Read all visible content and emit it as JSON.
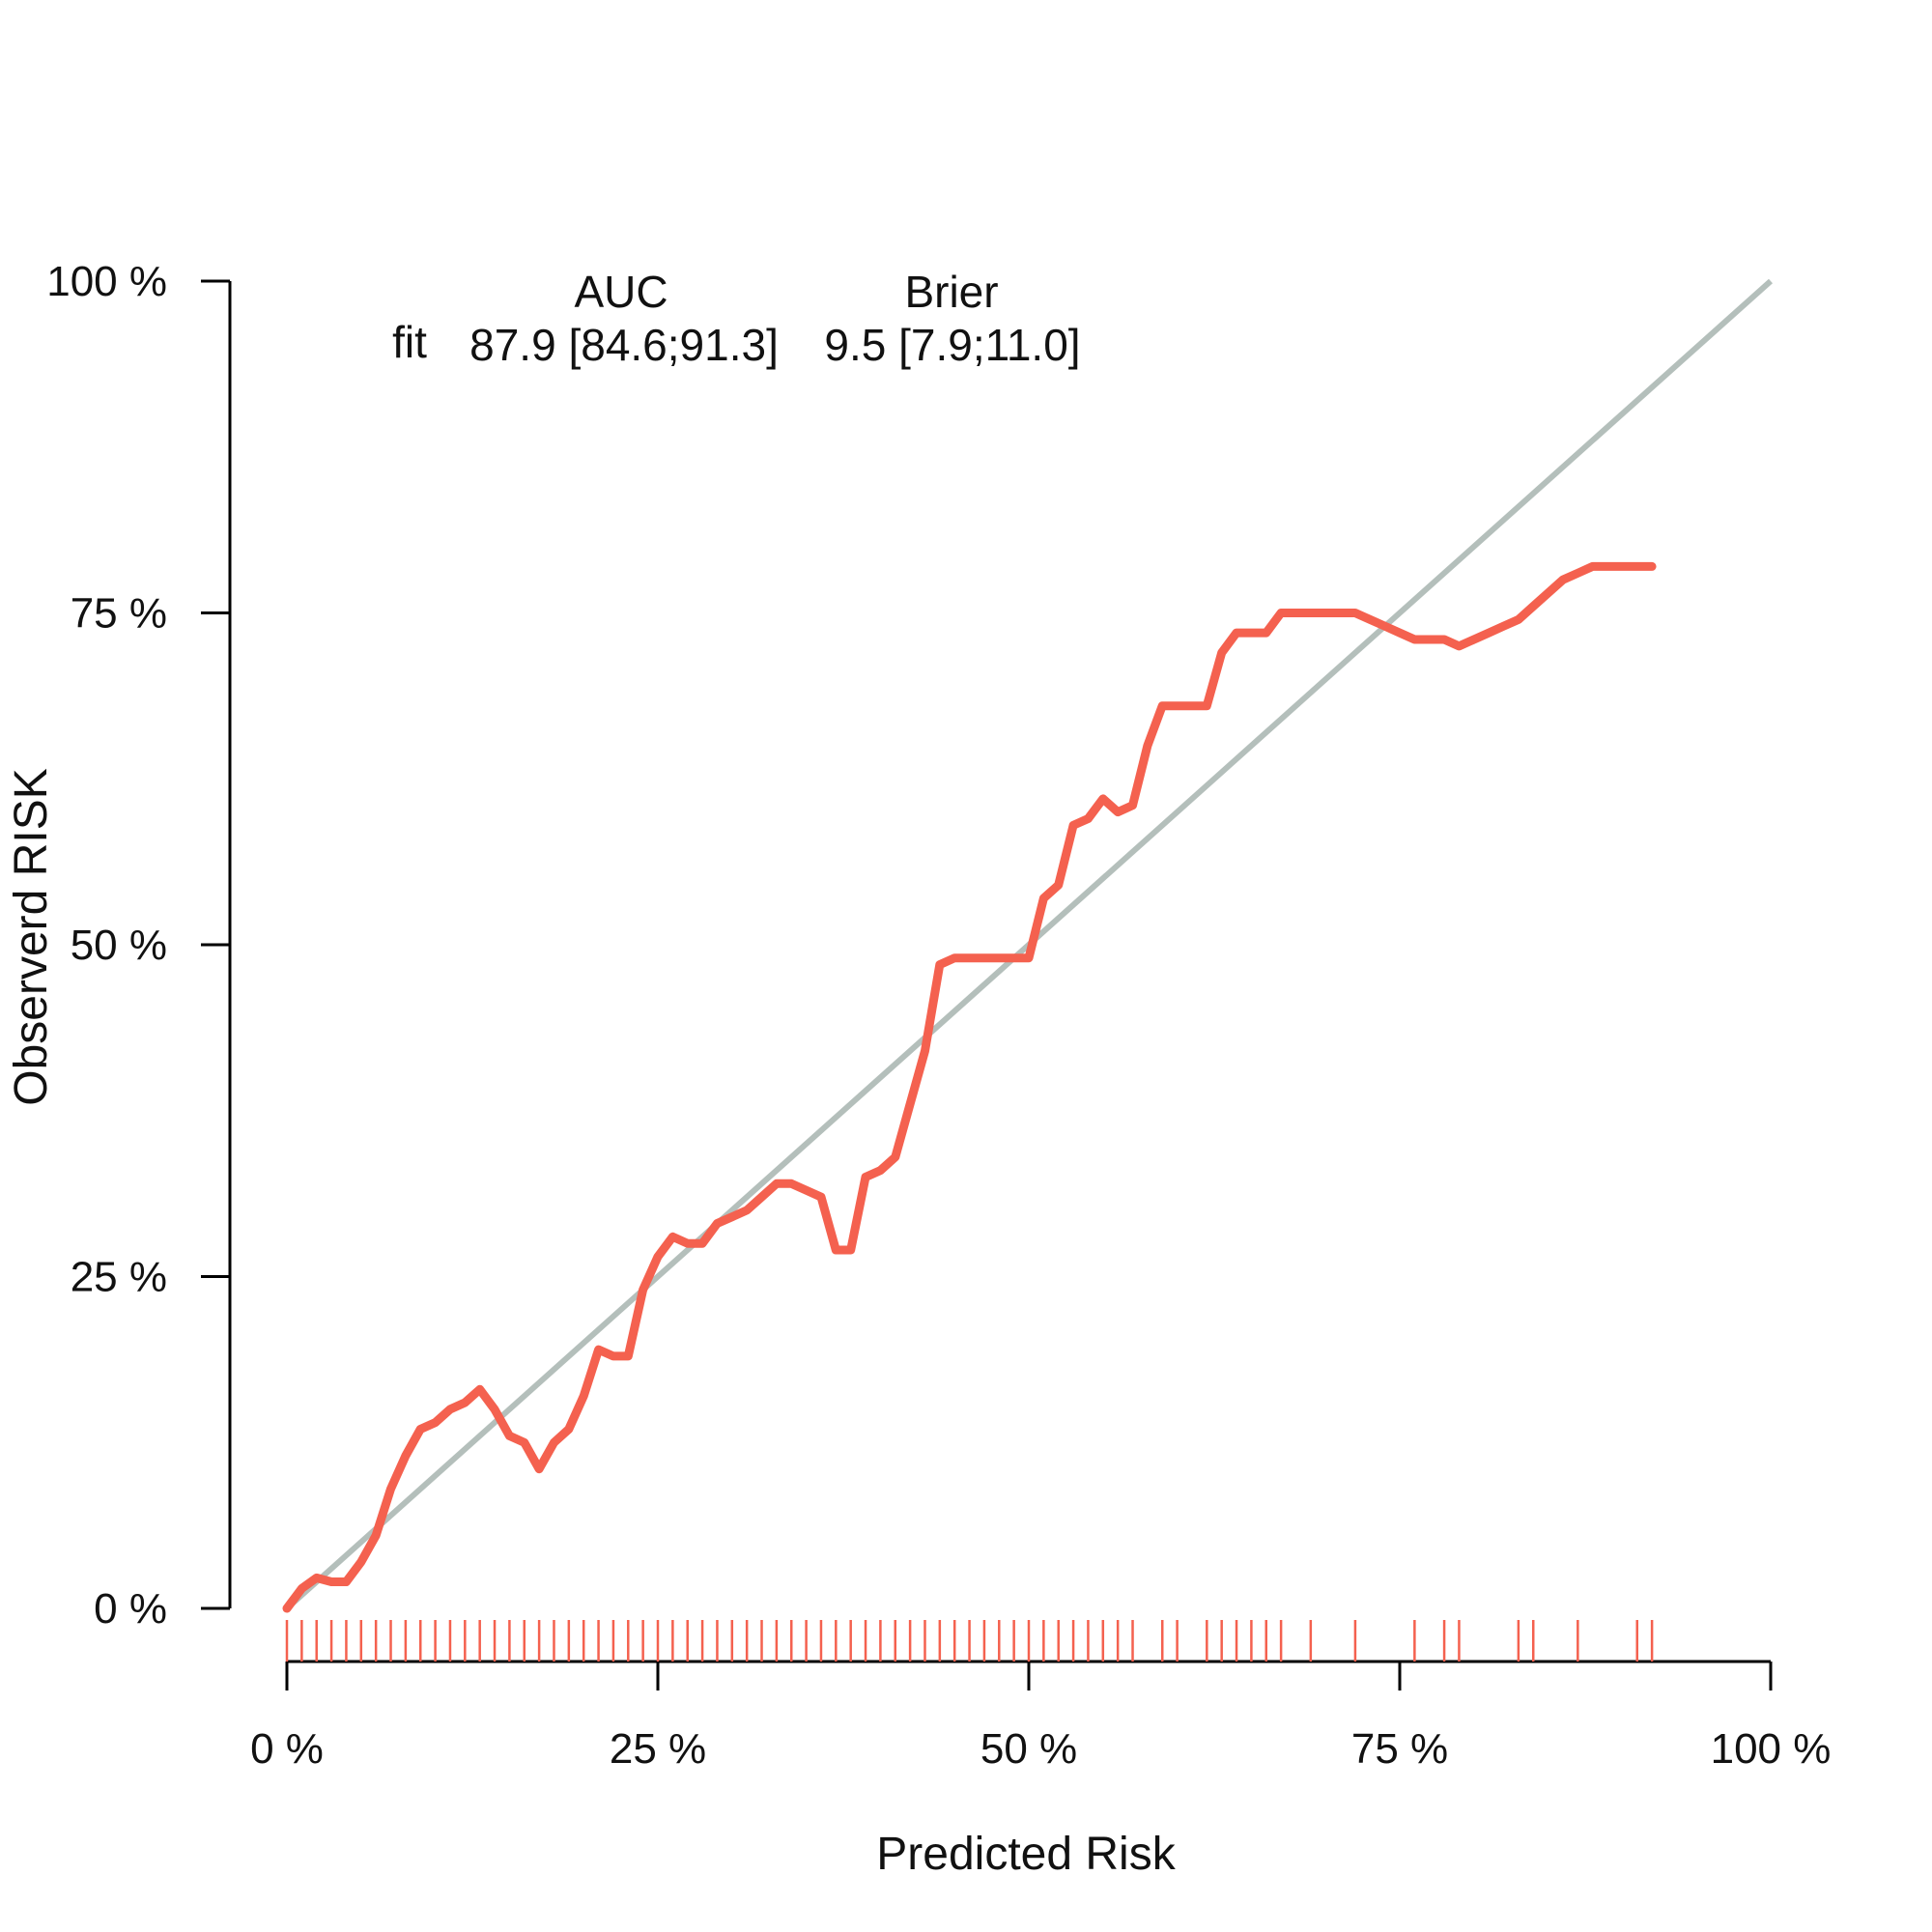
{
  "chart_data": {
    "type": "line",
    "title": "",
    "xlabel": "Predicted Risk",
    "ylabel": "Observerd RISK",
    "xlim": [
      0,
      100
    ],
    "ylim": [
      0,
      100
    ],
    "x_ticks": [
      "0 %",
      "25 %",
      "50 %",
      "75 %",
      "100 %"
    ],
    "y_ticks": [
      "0 %",
      "25 %",
      "50 %",
      "75 %",
      "100 %"
    ],
    "x_tick_values": [
      0,
      25,
      50,
      75,
      100
    ],
    "y_tick_values": [
      0,
      25,
      50,
      75,
      100
    ],
    "grid": false,
    "legend": "none",
    "reference_line": {
      "x": [
        0,
        100
      ],
      "y": [
        0,
        100
      ],
      "color": "#b4bfbb"
    },
    "stats": {
      "auc_header": "AUC",
      "brier_header": "Brier",
      "row_label": "fit",
      "auc_value": "87.9 [84.6;91.3]",
      "brier_value": "9.5 [7.9;11.0]"
    },
    "series": [
      {
        "color": "#f4614f",
        "x": [
          0,
          1,
          2,
          3,
          4,
          5,
          6,
          7,
          8,
          9,
          10,
          11,
          12,
          13,
          14,
          15,
          16,
          17,
          18,
          19,
          20,
          21,
          22,
          23,
          24,
          25,
          26,
          27,
          28,
          29,
          30,
          31,
          32,
          33,
          34,
          35,
          36,
          37,
          38,
          39,
          40,
          41,
          42,
          43,
          44,
          45,
          46,
          47,
          48,
          49,
          50,
          51,
          52,
          53,
          54,
          55,
          56,
          57,
          58,
          59,
          60,
          61,
          62,
          63,
          64,
          65,
          66,
          67,
          68,
          69,
          70,
          71,
          72,
          73,
          74,
          75,
          76,
          77,
          78,
          79,
          80,
          81,
          82,
          83,
          84,
          85,
          86,
          87,
          88,
          89,
          90,
          91,
          92
        ],
        "y": [
          0,
          1.5,
          2.3,
          2.0,
          2.0,
          3.5,
          5.5,
          9.0,
          11.5,
          13.5,
          14.0,
          15.0,
          15.5,
          16.5,
          15.0,
          13.0,
          12.5,
          10.5,
          12.5,
          13.5,
          16.0,
          19.5,
          19.0,
          19.0,
          24.0,
          26.5,
          28.0,
          27.5,
          27.5,
          29.0,
          29.5,
          30.0,
          31.0,
          32.0,
          32.0,
          31.5,
          31.0,
          27.0,
          27.0,
          32.5,
          33.0,
          34.0,
          38.0,
          42.0,
          48.5,
          49.0,
          49.0,
          49.0,
          49.0,
          49.0,
          49.0,
          53.5,
          54.5,
          59.0,
          59.5,
          61.0,
          60.0,
          60.5,
          65.0,
          68.0,
          68.0,
          68.0,
          68.0,
          72.0,
          73.5,
          73.5,
          73.5,
          75.0,
          75.0,
          75.0,
          75.0,
          75.0,
          75.0,
          74.5,
          74.0,
          73.5,
          73.0,
          73.0,
          73.0,
          72.5,
          73.0,
          73.5,
          74.0,
          74.5,
          75.5,
          76.5,
          77.5,
          78.0,
          78.5,
          78.5,
          78.5,
          78.5,
          78.5
        ]
      }
    ],
    "rug": {
      "color": "#f4614f",
      "x": [
        0,
        1,
        2,
        3,
        4,
        5,
        6,
        7,
        8,
        9,
        10,
        11,
        12,
        13,
        14,
        15,
        16,
        17,
        18,
        19,
        20,
        21,
        22,
        23,
        24,
        25,
        26,
        27,
        28,
        29,
        30,
        31,
        32,
        33,
        34,
        35,
        36,
        37,
        38,
        39,
        40,
        41,
        42,
        43,
        44,
        45,
        46,
        47,
        48,
        49,
        50,
        51,
        52,
        53,
        54,
        55,
        56,
        57,
        59,
        60,
        62,
        63,
        64,
        65,
        66,
        67,
        69,
        72,
        76,
        78,
        79,
        83,
        84,
        87,
        91,
        92
      ]
    }
  }
}
